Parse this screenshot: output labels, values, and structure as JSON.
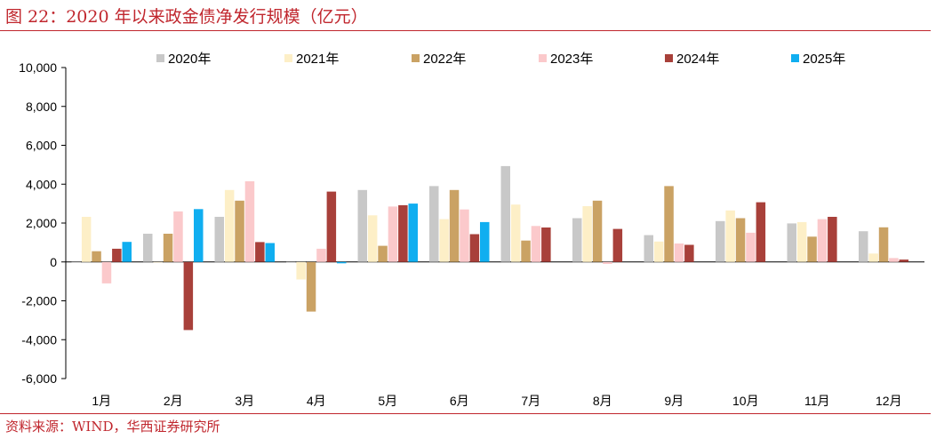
{
  "header": {
    "title": "图 22：2020 年以来政金债净发行规模（亿元）"
  },
  "footer": {
    "source": "资料来源：WIND，华西证券研究所"
  },
  "colors": {
    "accent": "#c0262d",
    "series": [
      "#c8c8c8",
      "#fdefc7",
      "#caa264",
      "#fbc9cb",
      "#a8403a",
      "#10aef0"
    ]
  },
  "chart_data": {
    "type": "bar",
    "title": "2020 年以来政金债净发行规模（亿元）",
    "xlabel": "",
    "ylabel": "",
    "ylim": [
      -6000,
      10000
    ],
    "yticks": [
      -6000,
      -4000,
      -2000,
      0,
      2000,
      4000,
      6000,
      8000,
      10000
    ],
    "ytick_labels": [
      "-6,000",
      "-4,000",
      "-2,000",
      "0",
      "2,000",
      "4,000",
      "6,000",
      "8,000",
      "10,000"
    ],
    "grid": false,
    "legend_position": "top",
    "categories": [
      "1月",
      "2月",
      "3月",
      "4月",
      "5月",
      "6月",
      "7月",
      "8月",
      "9月",
      "10月",
      "11月",
      "12月"
    ],
    "series": [
      {
        "name": "2020年",
        "values": [
          0,
          1450,
          2320,
          0,
          3700,
          3900,
          4930,
          2250,
          1380,
          2100,
          1980,
          1580
        ]
      },
      {
        "name": "2021年",
        "values": [
          2320,
          0,
          3700,
          -900,
          2400,
          2200,
          2950,
          2870,
          1050,
          2650,
          2050,
          430
        ]
      },
      {
        "name": "2022年",
        "values": [
          550,
          1450,
          3150,
          -2550,
          830,
          3700,
          1100,
          3150,
          3900,
          2250,
          1300,
          1780
        ]
      },
      {
        "name": "2023年",
        "values": [
          -1100,
          2600,
          4150,
          680,
          2850,
          2700,
          1850,
          -100,
          950,
          1500,
          2200,
          200
        ]
      },
      {
        "name": "2024年",
        "values": [
          680,
          -3500,
          1020,
          3620,
          2920,
          1430,
          1770,
          1700,
          880,
          3070,
          2320,
          120
        ]
      },
      {
        "name": "2025年",
        "values": [
          1030,
          2720,
          970,
          -70,
          3000,
          2050,
          null,
          null,
          null,
          null,
          null,
          null
        ]
      }
    ]
  }
}
